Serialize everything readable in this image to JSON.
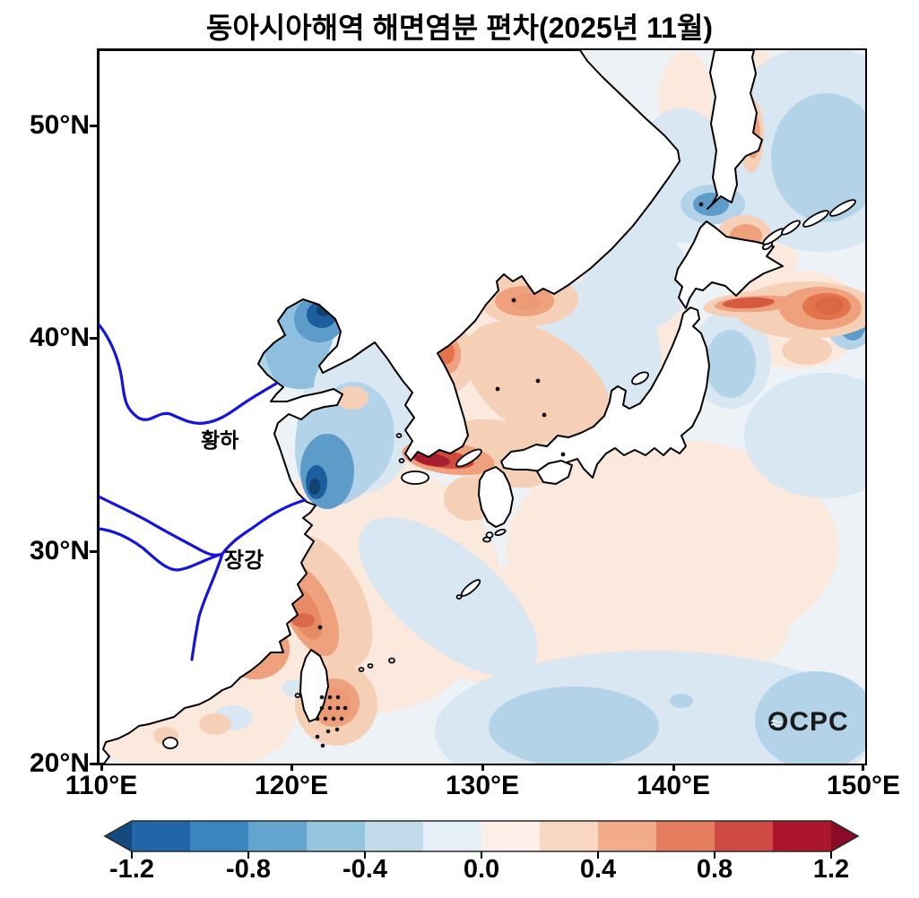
{
  "title": "동아시아해역 해면염분 편차(2025년 11월)",
  "axes": {
    "lat_ticks": [
      "50°N",
      "40°N",
      "30°N",
      "20°N"
    ],
    "lon_ticks": [
      "110°E",
      "120°E",
      "130°E",
      "140°E",
      "150°E"
    ]
  },
  "map_labels": {
    "yellow_river": "황하",
    "yangtze_river": "장강",
    "logo": "OCPC"
  },
  "colorbar": {
    "ticks": [
      "-1.2",
      "-0.8",
      "-0.4",
      "0.0",
      "0.4",
      "0.8",
      "1.2"
    ],
    "palette": [
      "#2066a8",
      "#3a87c0",
      "#63a5cd",
      "#94c5de",
      "#c2dcec",
      "#e6eff5",
      "#fcefe7",
      "#f9d7c2",
      "#f3ac89",
      "#e57e5e",
      "#cf4a43",
      "#ac162c"
    ],
    "under_color": "#134b7f",
    "over_color": "#8a0b25",
    "outline_color": "#2a2a2a"
  },
  "chart_data": {
    "type": "heatmap",
    "subtype": "filled-contour map over coastline basemap",
    "title": "동아시아해역 해면염분 편차(2025년 11월)",
    "variable": "sea surface salinity anomaly",
    "period": "2025년 11월",
    "xlabel": "longitude",
    "ylabel": "latitude",
    "lon_range": [
      110,
      150
    ],
    "lat_range": [
      20,
      53.5
    ],
    "lon_tick_values": [
      110,
      120,
      130,
      140,
      150
    ],
    "lat_tick_values": [
      20,
      30,
      40,
      50
    ],
    "colorbar_tick_values": [
      -1.2,
      -0.8,
      -0.4,
      0.0,
      0.4,
      0.8,
      1.2
    ],
    "contour_interval": 0.2,
    "colormap": "blue-white-red diverging, arrow extensions both ends",
    "land_color": "#ffffff",
    "river_color": "#1414dd",
    "features": [
      {
        "region": "Bohai Sea",
        "lon": 120.3,
        "lat": 39.3,
        "anomaly": -0.8
      },
      {
        "region": "NE Bohai (Liaodong Bay)",
        "lon": 121.5,
        "lat": 40.3,
        "anomaly": -1.2
      },
      {
        "region": "Jiangsu coast",
        "lon": 121.2,
        "lat": 33.0,
        "anomaly": -1.1
      },
      {
        "region": "Yellow Sea center",
        "lon": 123,
        "lat": 35.5,
        "anomaly": -0.4
      },
      {
        "region": "South coast of Korea",
        "lon": 127.5,
        "lat": 34.6,
        "anomaly": 1.0
      },
      {
        "region": "Korea Strait / Tsushima",
        "lon": 129,
        "lat": 35.5,
        "anomaly": 0.5
      },
      {
        "region": "East coast of Korea (Wonsan)",
        "lon": 128.3,
        "lat": 39.3,
        "anomaly": 0.7
      },
      {
        "region": "Peter the Great Bay",
        "lon": 132,
        "lat": 42.6,
        "anomaly": 0.6
      },
      {
        "region": "NW Sea of Japan",
        "lon": 132.5,
        "lat": 40.5,
        "anomaly": 0.3
      },
      {
        "region": "NE Sea of Japan",
        "lon": 136,
        "lat": 41.5,
        "anomaly": -0.2
      },
      {
        "region": "West of La Perouse Strait",
        "lon": 141.5,
        "lat": 46.3,
        "anomaly": -0.6
      },
      {
        "region": "South of Aniva Bay",
        "lon": 143.5,
        "lat": 44.9,
        "anomaly": 0.5
      },
      {
        "region": "East of Tsugaru Strait",
        "lon": 142.5,
        "lat": 41.6,
        "anomaly": 0.7
      },
      {
        "region": "Kuroshio-Oyashio zone east of Japan",
        "lon": 147.5,
        "lat": 41.3,
        "anomaly": 0.8
      },
      {
        "region": "Far-east blue patch at 149.5E",
        "lon": 149.5,
        "lat": 40.8,
        "anomaly": -0.6
      },
      {
        "region": "Sanriku coast",
        "lon": 143,
        "lat": 38.5,
        "anomaly": -0.4
      },
      {
        "region": "Zhejiang coast",
        "lon": 121.2,
        "lat": 27.2,
        "anomaly": 0.6
      },
      {
        "region": "NE of Taiwan",
        "lon": 121.8,
        "lat": 25.6,
        "anomaly": 0.8
      },
      {
        "region": "East of Taiwan (stippled)",
        "lon": 122.4,
        "lat": 22.8,
        "anomaly": 0.6
      },
      {
        "region": "Sea of Okhotsk",
        "lon": 147.5,
        "lat": 50.5,
        "anomaly": -0.3
      },
      {
        "region": "Subtropical band 21-24N",
        "lon": 134,
        "lat": 22,
        "anomaly": -0.4
      },
      {
        "region": "Philippine Sea",
        "lon": 139,
        "lat": 28,
        "anomaly": 0.2
      }
    ],
    "stippling": "cluster of black stipple dots near 122-123E / 22-23.5N east of Taiwan, plus scattered single dots (e.g. 131.7E 41.8N, 130.9E 37.6N, 133.3E 36.3N, 121.6E 26.4N)",
    "annotations": [
      "황하 (Yellow River) line",
      "장강 (Yangtze River) line",
      "OCPC logo bottom-right"
    ],
    "legend_position": "horizontal colorbar below map"
  }
}
